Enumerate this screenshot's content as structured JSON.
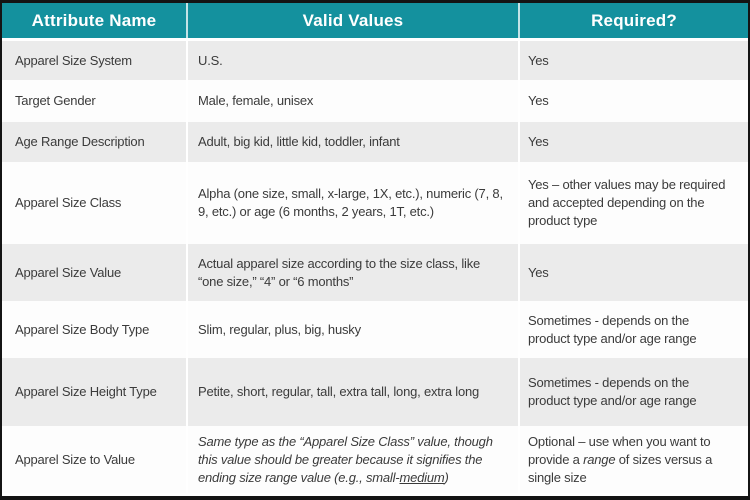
{
  "colors": {
    "header_bg": "#14919e",
    "header_text": "#ffffff",
    "row_gray": "#ebebeb",
    "row_white": "#fdfdfd",
    "body_text": "#3b3b3b",
    "outer_border": "#141414"
  },
  "table": {
    "columns": [
      "Attribute Name",
      "Valid Values",
      "Required?"
    ],
    "rows": [
      {
        "attribute": "Apparel Size System",
        "valid_values": "U.S.",
        "required": "Yes"
      },
      {
        "attribute": "Target Gender",
        "valid_values": "Male, female, unisex",
        "required": "Yes"
      },
      {
        "attribute": "Age Range Description",
        "valid_values": "Adult, big kid, little kid, toddler, infant",
        "required": "Yes"
      },
      {
        "attribute": "Apparel Size Class",
        "valid_values": "Alpha (one size, small, x-large, 1X, etc.), numeric (7, 8, 9, etc.) or age (6 months, 2 years, 1T, etc.)",
        "required": "Yes – other values may be required and accepted depending on the product type"
      },
      {
        "attribute": "Apparel Size Value",
        "valid_values": "Actual apparel size according to the size class, like “one size,” “4” or “6 months”",
        "required": "Yes"
      },
      {
        "attribute": "Apparel Size Body Type",
        "valid_values": "Slim, regular, plus, big, husky",
        "required": "Sometimes - depends on the product type and/or age range"
      },
      {
        "attribute": "Apparel Size Height Type",
        "valid_values": "Petite, short, regular, tall, extra tall, long, extra long",
        "required": "Sometimes - depends on the product type and/or age range"
      },
      {
        "attribute": "Apparel Size to Value",
        "valid_values_segments": [
          {
            "text": "Same type as the “Apparel Size Class” value, though this value should be greater because it signifies the ending size range value (e.g., small-",
            "style": "italic"
          },
          {
            "text": "medium",
            "style": "italic underline"
          },
          {
            "text": ")",
            "style": "italic"
          }
        ],
        "required_segments": [
          {
            "text": "Optional – use when you want to provide a ",
            "style": ""
          },
          {
            "text": "range",
            "style": "italic"
          },
          {
            "text": " of sizes versus a single size",
            "style": ""
          }
        ]
      }
    ]
  },
  "chart_data": {
    "type": "table",
    "columns": [
      "Attribute Name",
      "Valid Values",
      "Required?"
    ],
    "rows": [
      [
        "Apparel Size System",
        "U.S.",
        "Yes"
      ],
      [
        "Target Gender",
        "Male, female, unisex",
        "Yes"
      ],
      [
        "Age Range Description",
        "Adult, big kid, little kid, toddler, infant",
        "Yes"
      ],
      [
        "Apparel Size Class",
        "Alpha (one size, small, x-large, 1X, etc.), numeric (7, 8, 9, etc.) or age (6 months, 2 years, 1T, etc.)",
        "Yes – other values may be required and accepted depending on the product type"
      ],
      [
        "Apparel Size Value",
        "Actual apparel size according to the size class, like “one size,” “4” or “6 months”",
        "Yes"
      ],
      [
        "Apparel Size Body Type",
        "Slim, regular, plus, big, husky",
        "Sometimes - depends on the product type and/or age range"
      ],
      [
        "Apparel Size Height Type",
        "Petite, short, regular, tall, extra tall, long, extra long",
        "Sometimes - depends on the product type and/or age range"
      ],
      [
        "Apparel Size to Value",
        "Same type as the “Apparel Size Class” value, though this value should be greater because it signifies the ending size range value (e.g., small-medium)",
        "Optional – use when you want to provide a range of sizes versus a single size"
      ]
    ]
  }
}
